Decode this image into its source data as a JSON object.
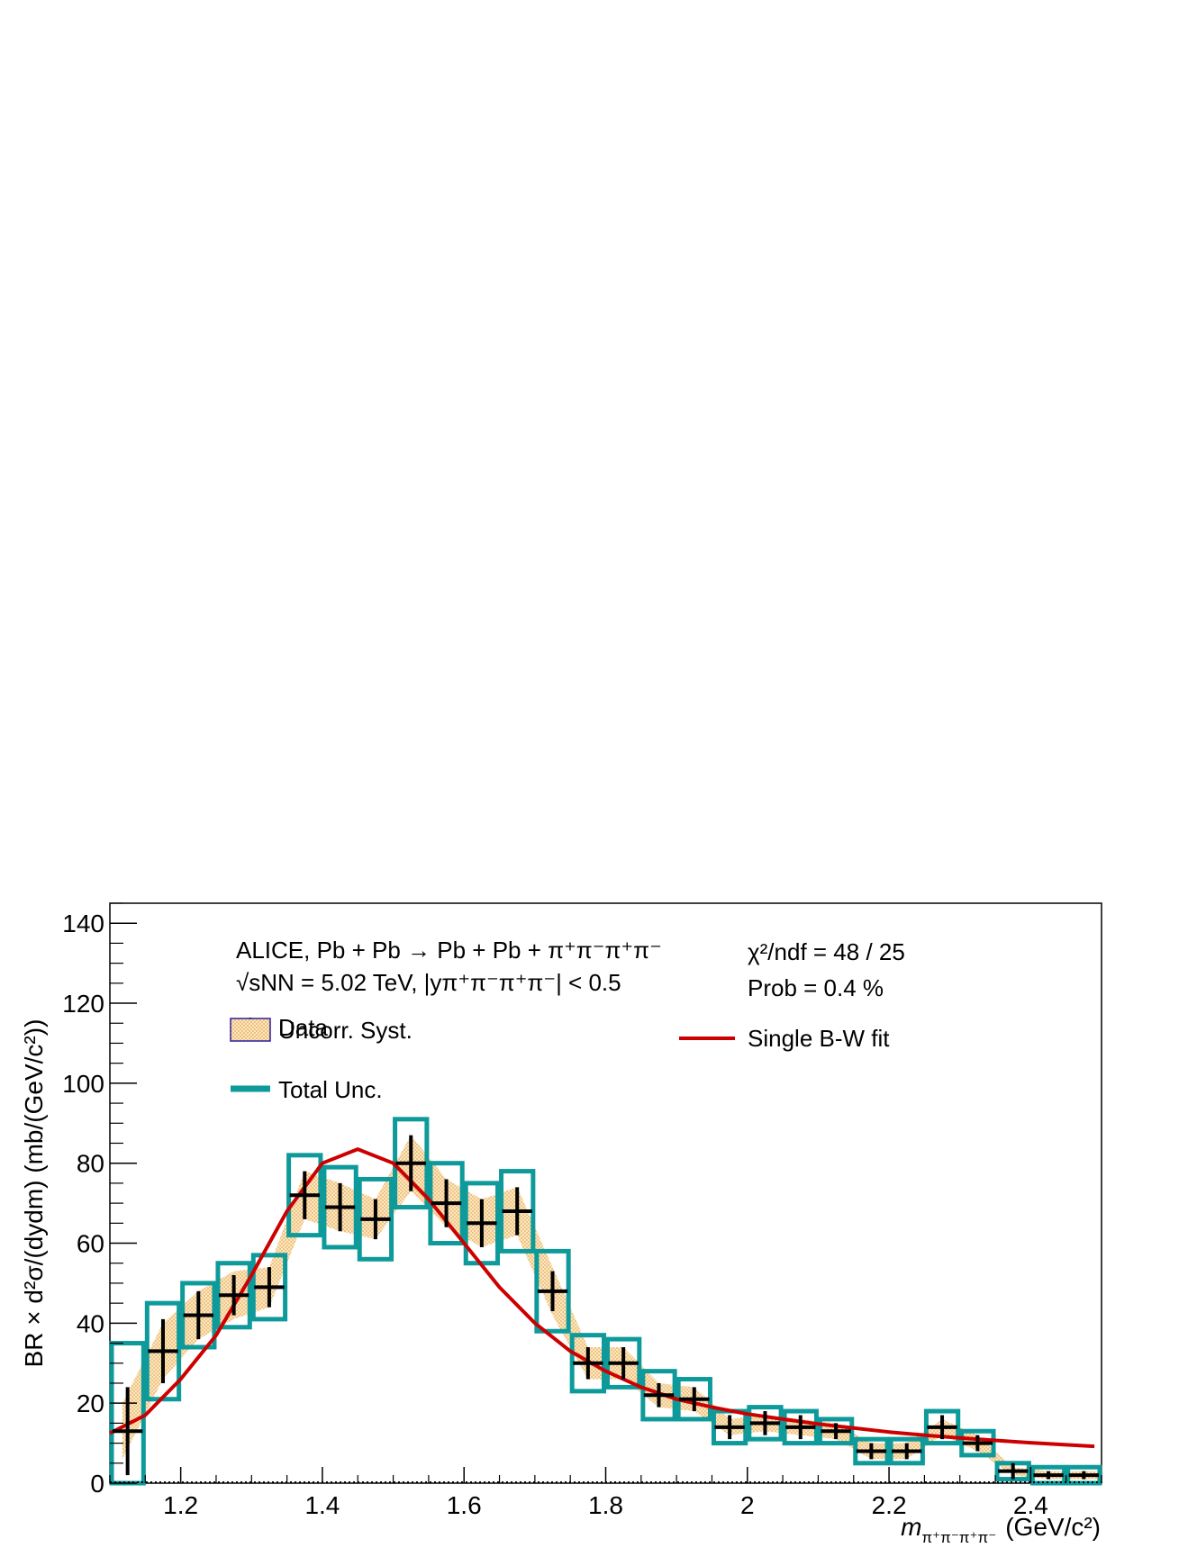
{
  "chart_data": {
    "type": "scatter",
    "xlabel": "m",
    "xlabel_sub": "π⁺π⁻π⁺π⁻",
    "xlabel_unit": "(GeV/c²)",
    "ylabel": "BR × d²σ/(dydm) (mb/(GeV/c²))",
    "xlim": [
      1.1,
      2.5
    ],
    "ylim": [
      0,
      145
    ],
    "x_ticks": [
      1.2,
      1.4,
      1.6,
      1.8,
      2,
      2.2,
      2.4
    ],
    "x_tick_labels": [
      "1.2",
      "1.4",
      "1.6",
      "1.8",
      "2",
      "2.2",
      "2.4"
    ],
    "y_ticks": [
      0,
      20,
      40,
      60,
      80,
      100,
      120,
      140
    ],
    "y_tick_labels": [
      "0",
      "20",
      "40",
      "60",
      "80",
      "100",
      "120",
      "140"
    ],
    "annotations": {
      "line1": "ALICE, Pb + Pb → Pb + Pb + π⁺π⁻π⁺π⁻",
      "line2": "√sNN = 5.02 TeV, |yπ⁺π⁻π⁺π⁻| < 0.5",
      "chi2": "χ²/ndf = 48 / 25",
      "prob": "Prob = 0.4 %"
    },
    "legend": {
      "data": "Data",
      "uncorr": "Uncorr. Syst.",
      "total": "Total Unc.",
      "fit": "Single B-W fit"
    },
    "colors": {
      "data": "#000000",
      "uncorr_fill": "#f5d49a",
      "uncorr_edge": "#2a1fa0",
      "total": "#0e9a9a",
      "fit": "#cc0000"
    },
    "bin_width": 0.05,
    "series": [
      {
        "name": "Data",
        "x": [
          1.125,
          1.175,
          1.225,
          1.275,
          1.325,
          1.375,
          1.425,
          1.475,
          1.525,
          1.575,
          1.625,
          1.675,
          1.725,
          1.775,
          1.825,
          1.875,
          1.925,
          1.975,
          2.025,
          2.075,
          2.125,
          2.175,
          2.225,
          2.275,
          2.325,
          2.375,
          2.425,
          2.475
        ],
        "y": [
          13,
          33,
          42,
          47,
          49,
          72,
          69,
          66,
          80,
          70,
          65,
          68,
          48,
          30,
          30,
          22,
          21,
          14,
          15,
          14,
          13,
          8,
          8,
          14,
          10,
          3,
          2,
          2
        ],
        "stat_err": [
          11,
          8,
          6,
          5,
          5,
          6,
          6,
          5,
          7,
          6,
          6,
          6,
          5,
          4,
          4,
          3,
          3,
          3,
          3,
          3,
          2,
          2,
          2,
          3,
          2,
          2,
          1,
          1
        ],
        "uncorr_syst": [
          7,
          7,
          6,
          6,
          5,
          6,
          6,
          5,
          7,
          6,
          6,
          6,
          6,
          4,
          4,
          3,
          3,
          2,
          2,
          2,
          2,
          2,
          2,
          2,
          2,
          1,
          1,
          1
        ],
        "total_unc": [
          22,
          12,
          8,
          8,
          8,
          10,
          10,
          10,
          11,
          10,
          10,
          10,
          10,
          7,
          6,
          6,
          5,
          4,
          4,
          4,
          3,
          3,
          3,
          4,
          3,
          2,
          2,
          2
        ]
      },
      {
        "name": "Single B-W fit",
        "x": [
          1.1,
          1.15,
          1.2,
          1.25,
          1.3,
          1.35,
          1.4,
          1.45,
          1.5,
          1.55,
          1.6,
          1.65,
          1.7,
          1.75,
          1.8,
          1.85,
          1.9,
          1.95,
          2.0,
          2.05,
          2.1,
          2.15,
          2.2,
          2.25,
          2.3,
          2.35,
          2.4,
          2.45,
          2.49
        ],
        "y": [
          12.5,
          17,
          26,
          37,
          52,
          68,
          80,
          83.5,
          80,
          71,
          60,
          49,
          40,
          33,
          28,
          24,
          21,
          19,
          17.3,
          16,
          14.8,
          13.8,
          12.8,
          12,
          11.3,
          10.7,
          10.1,
          9.6,
          9.2
        ]
      }
    ]
  }
}
